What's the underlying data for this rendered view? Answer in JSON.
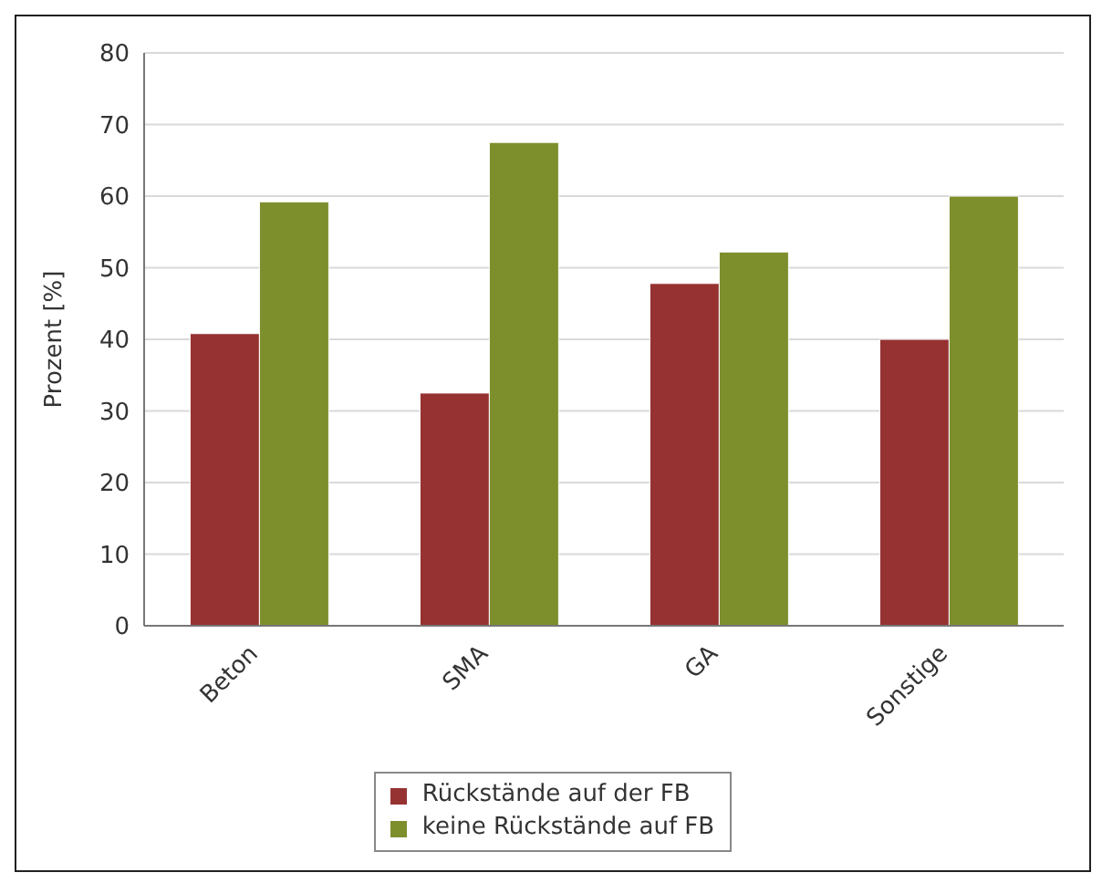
{
  "chart_data": {
    "type": "bar",
    "ylabel": "Prozent [%]",
    "categories": [
      "Beton",
      "SMA",
      "GA",
      "Sonstige"
    ],
    "series": [
      {
        "name": "Rückstände auf der FB",
        "color": "#963232",
        "values": [
          40.8,
          32.5,
          47.8,
          40
        ]
      },
      {
        "name": "keine Rückstände auf FB",
        "color": "#7d8f2d",
        "values": [
          59.2,
          67.5,
          52.2,
          60
        ]
      }
    ],
    "ylim": [
      0,
      80
    ],
    "yticks": [
      0,
      10,
      20,
      30,
      40,
      50,
      60,
      70,
      80
    ],
    "grid": "y",
    "legend": "bottom"
  }
}
